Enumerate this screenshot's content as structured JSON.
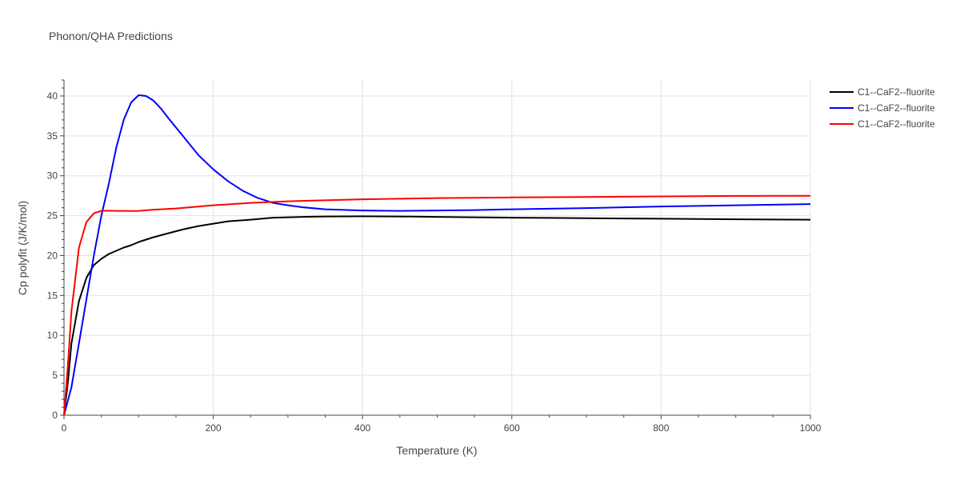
{
  "chart_data": {
    "type": "line",
    "title": "Phonon/QHA Predictions",
    "xlabel": "Temperature (K)",
    "ylabel": "Cp polyfit (J/K/mol)",
    "xlim": [
      0,
      1000
    ],
    "ylim": [
      0,
      42
    ],
    "xticks": [
      0,
      200,
      400,
      600,
      800,
      1000
    ],
    "xtick_labels": [
      "0",
      "200",
      "400",
      "600",
      "800",
      "1000"
    ],
    "yticks": [
      0,
      5,
      10,
      15,
      20,
      25,
      30,
      35,
      40
    ],
    "ytick_labels": [
      "0",
      "5",
      "10",
      "15",
      "20",
      "25",
      "30",
      "35",
      "40"
    ],
    "grid": true,
    "legend_position": "top-right",
    "series": [
      {
        "name": "C1--CaF2--fluorite",
        "color": "#000000",
        "points": [
          [
            0,
            0
          ],
          [
            5,
            4
          ],
          [
            10,
            9
          ],
          [
            20,
            14.3
          ],
          [
            30,
            17.2
          ],
          [
            40,
            18.8
          ],
          [
            50,
            19.6
          ],
          [
            60,
            20.2
          ],
          [
            70,
            20.6
          ],
          [
            80,
            21
          ],
          [
            90,
            21.3
          ],
          [
            100,
            21.7
          ],
          [
            120,
            22.3
          ],
          [
            140,
            22.8
          ],
          [
            160,
            23.3
          ],
          [
            180,
            23.7
          ],
          [
            200,
            24
          ],
          [
            220,
            24.3
          ],
          [
            250,
            24.5
          ],
          [
            280,
            24.75
          ],
          [
            320,
            24.85
          ],
          [
            350,
            24.9
          ],
          [
            400,
            24.92
          ],
          [
            450,
            24.9
          ],
          [
            500,
            24.85
          ],
          [
            550,
            24.8
          ],
          [
            600,
            24.75
          ],
          [
            650,
            24.72
          ],
          [
            700,
            24.68
          ],
          [
            800,
            24.62
          ],
          [
            900,
            24.55
          ],
          [
            1000,
            24.5
          ]
        ]
      },
      {
        "name": "C1--CaF2--fluorite",
        "color": "#0000ff",
        "points": [
          [
            0,
            0
          ],
          [
            10,
            3.5
          ],
          [
            20,
            9
          ],
          [
            30,
            14.5
          ],
          [
            40,
            20
          ],
          [
            50,
            25
          ],
          [
            60,
            29
          ],
          [
            70,
            33.5
          ],
          [
            80,
            37
          ],
          [
            90,
            39.2
          ],
          [
            100,
            40.1
          ],
          [
            110,
            40
          ],
          [
            120,
            39.4
          ],
          [
            130,
            38.4
          ],
          [
            140,
            37.2
          ],
          [
            160,
            34.9
          ],
          [
            180,
            32.6
          ],
          [
            200,
            30.8
          ],
          [
            220,
            29.3
          ],
          [
            240,
            28.1
          ],
          [
            260,
            27.2
          ],
          [
            280,
            26.6
          ],
          [
            300,
            26.3
          ],
          [
            320,
            26.05
          ],
          [
            350,
            25.8
          ],
          [
            400,
            25.65
          ],
          [
            450,
            25.6
          ],
          [
            500,
            25.65
          ],
          [
            550,
            25.7
          ],
          [
            600,
            25.8
          ],
          [
            700,
            25.95
          ],
          [
            800,
            26.15
          ],
          [
            900,
            26.3
          ],
          [
            1000,
            26.45
          ]
        ]
      },
      {
        "name": "C1--CaF2--fluorite",
        "color": "#ff0000",
        "points": [
          [
            0,
            0
          ],
          [
            5,
            6
          ],
          [
            10,
            13
          ],
          [
            20,
            21
          ],
          [
            30,
            24.2
          ],
          [
            40,
            25.3
          ],
          [
            50,
            25.6
          ],
          [
            60,
            25.62
          ],
          [
            70,
            25.6
          ],
          [
            80,
            25.6
          ],
          [
            90,
            25.58
          ],
          [
            100,
            25.6
          ],
          [
            120,
            25.75
          ],
          [
            150,
            25.9
          ],
          [
            200,
            26.3
          ],
          [
            250,
            26.6
          ],
          [
            300,
            26.8
          ],
          [
            350,
            26.92
          ],
          [
            400,
            27.05
          ],
          [
            500,
            27.2
          ],
          [
            600,
            27.28
          ],
          [
            700,
            27.35
          ],
          [
            800,
            27.42
          ],
          [
            900,
            27.48
          ],
          [
            1000,
            27.5
          ]
        ]
      }
    ]
  }
}
